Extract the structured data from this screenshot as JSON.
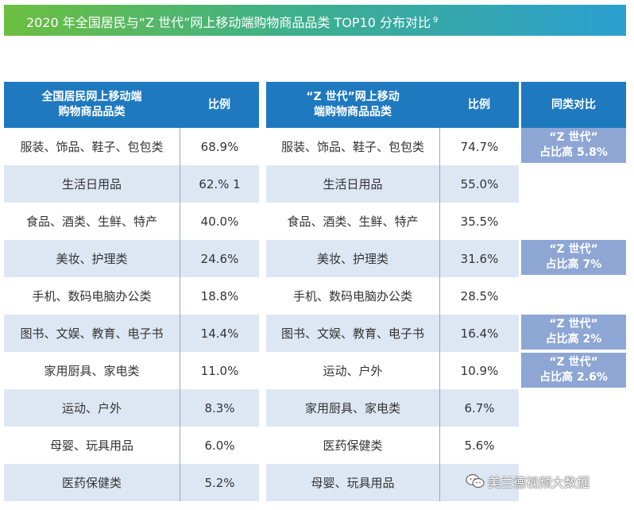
{
  "title": "2020 年全国居民与“Z 世代”网上移动端购物商品品类 TOP10 分布对比",
  "title_superscript": "9",
  "table_national": {
    "header_category": [
      "全国居民网上移动端",
      "购物商品品类"
    ],
    "header_ratio": "比例",
    "rows": [
      {
        "category": "服装、饰品、鞋子、包包类",
        "ratio": "68.9%"
      },
      {
        "category": "生活日用品",
        "ratio": "62.% 1"
      },
      {
        "category": "食品、酒类、生鲜、特产",
        "ratio": "40.0%"
      },
      {
        "category": "美妆、护理类",
        "ratio": "24.6%"
      },
      {
        "category": "手机、数码电脑办公类",
        "ratio": "18.8%"
      },
      {
        "category": "图书、文娱、教育、电子书",
        "ratio": "14.4%"
      },
      {
        "category": "家用厨具、家电类",
        "ratio": "11.0%"
      },
      {
        "category": "运动、户外",
        "ratio": "8.3%"
      },
      {
        "category": "母婴、玩具用品",
        "ratio": "6.0%"
      },
      {
        "category": "医药保健类",
        "ratio": "5.2%"
      }
    ]
  },
  "table_genz": {
    "header_category": [
      "“Z 世代”网上移动",
      "端购物商品品类"
    ],
    "header_ratio": "比例",
    "rows": [
      {
        "category": "服装、饰品、鞋子、包包类",
        "ratio": "74.7%"
      },
      {
        "category": "生活日用品",
        "ratio": "55.0%"
      },
      {
        "category": "食品、酒类、生鲜、特产",
        "ratio": "35.5%"
      },
      {
        "category": "美妆、护理类",
        "ratio": "31.6%"
      },
      {
        "category": "手机、数码电脑办公类",
        "ratio": "28.5%"
      },
      {
        "category": "图书、文娱、教育、电子书",
        "ratio": "16.4%"
      },
      {
        "category": "运动、户外",
        "ratio": "10.9%"
      },
      {
        "category": "家用厨具、家电类",
        "ratio": "6.7%"
      },
      {
        "category": "医药保健类",
        "ratio": "5.6%"
      },
      {
        "category": "母婴、玩具用品",
        "ratio": ""
      }
    ]
  },
  "comparison": {
    "header": "同类对比",
    "badges": [
      {
        "line1": "“Z 世代”",
        "line2": "占比高 5.8%"
      },
      {
        "line1": "“Z 世代”",
        "line2": "占比高 7%"
      },
      {
        "line1": "“Z 世代”",
        "line2": "占比高 2%"
      },
      {
        "line1": "“Z 世代”",
        "line2": "占比高 2.6%"
      }
    ]
  },
  "watermark": {
    "text": "美兰德视频大数据",
    "icon": "wechat-icon"
  },
  "colors": {
    "header": "#1f79bf",
    "alt_row": "#dde7f3",
    "badge": "#8ea6d4"
  }
}
